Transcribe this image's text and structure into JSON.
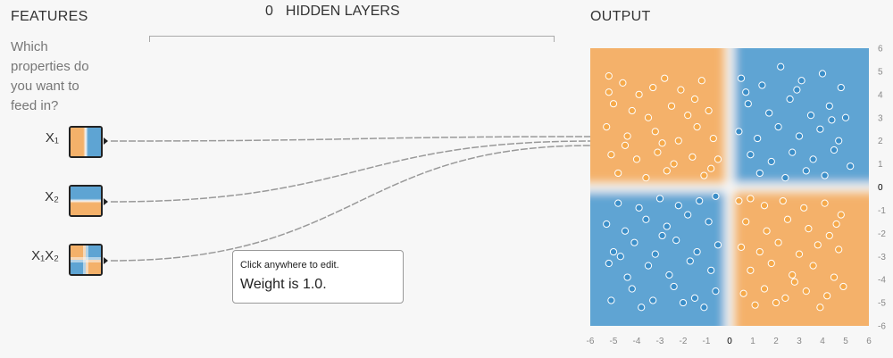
{
  "features": {
    "title": "FEATURES",
    "question": "Which properties do you want to feed in?",
    "items": [
      {
        "label": "X₁",
        "kind": "x1"
      },
      {
        "label": "X₂",
        "kind": "x2"
      },
      {
        "label": "X₁X₂",
        "kind": "x1x2"
      }
    ]
  },
  "hidden_layers": {
    "count": "0",
    "label": "HIDDEN LAYERS"
  },
  "output": {
    "title": "OUTPUT"
  },
  "tooltip": {
    "hint": "Click anywhere to edit.",
    "weight_text": "Weight is 1.0."
  },
  "colors": {
    "orange": "#f5a94a",
    "blue": "#3b8ec8",
    "bg_orange": "#f4b16a",
    "bg_blue": "#5ea4d3"
  },
  "chart_data": {
    "type": "scatter",
    "title": "",
    "xlabel": "",
    "ylabel": "",
    "xlim": [
      -6,
      6
    ],
    "ylim": [
      -6,
      6
    ],
    "x_ticks": [
      -6,
      -5,
      -4,
      -3,
      -2,
      -1,
      0,
      1,
      2,
      3,
      4,
      5,
      6
    ],
    "y_ticks": [
      6,
      5,
      4,
      3,
      2,
      1,
      0,
      -1,
      -2,
      -3,
      -4,
      -5,
      -6
    ],
    "series": [
      {
        "color": "orange",
        "points": [
          [
            -5.2,
            4.8
          ],
          [
            -4.6,
            4.5
          ],
          [
            -3.9,
            4.0
          ],
          [
            -2.8,
            4.7
          ],
          [
            -2.1,
            4.2
          ],
          [
            -1.2,
            4.6
          ],
          [
            -5.0,
            3.6
          ],
          [
            -4.2,
            3.3
          ],
          [
            -3.5,
            3.0
          ],
          [
            -2.5,
            3.5
          ],
          [
            -1.8,
            3.1
          ],
          [
            -0.9,
            3.3
          ],
          [
            -5.3,
            2.6
          ],
          [
            -4.4,
            2.2
          ],
          [
            -3.2,
            2.4
          ],
          [
            -2.2,
            2.0
          ],
          [
            -1.4,
            2.6
          ],
          [
            -0.7,
            2.1
          ],
          [
            -5.1,
            1.4
          ],
          [
            -4.0,
            1.2
          ],
          [
            -3.1,
            1.5
          ],
          [
            -2.4,
            1.0
          ],
          [
            -1.6,
            1.3
          ],
          [
            -0.5,
            1.2
          ],
          [
            -4.8,
            0.6
          ],
          [
            -3.6,
            0.4
          ],
          [
            -2.7,
            0.7
          ],
          [
            -1.1,
            0.5
          ],
          [
            -5.2,
            4.1
          ],
          [
            -3.3,
            4.3
          ],
          [
            -1.5,
            3.8
          ],
          [
            -4.5,
            1.8
          ],
          [
            -2.9,
            1.9
          ],
          [
            -0.8,
            0.8
          ],
          [
            0.4,
            -0.6
          ],
          [
            0.9,
            -0.5
          ],
          [
            1.5,
            -0.8
          ],
          [
            2.3,
            -0.6
          ],
          [
            3.2,
            -0.9
          ],
          [
            4.1,
            -0.7
          ],
          [
            4.8,
            -1.2
          ],
          [
            0.7,
            -1.5
          ],
          [
            1.6,
            -1.9
          ],
          [
            2.5,
            -1.4
          ],
          [
            3.4,
            -1.8
          ],
          [
            4.3,
            -2.1
          ],
          [
            0.5,
            -2.6
          ],
          [
            1.3,
            -2.8
          ],
          [
            2.1,
            -2.4
          ],
          [
            3.0,
            -2.9
          ],
          [
            3.8,
            -2.5
          ],
          [
            4.7,
            -2.7
          ],
          [
            0.9,
            -3.6
          ],
          [
            1.8,
            -3.3
          ],
          [
            2.7,
            -3.8
          ],
          [
            3.6,
            -3.4
          ],
          [
            4.5,
            -3.9
          ],
          [
            0.6,
            -4.6
          ],
          [
            1.5,
            -4.4
          ],
          [
            2.4,
            -4.8
          ],
          [
            3.3,
            -4.5
          ],
          [
            4.2,
            -4.7
          ],
          [
            4.9,
            -4.3
          ],
          [
            1.1,
            -5.1
          ],
          [
            2.0,
            -5.0
          ],
          [
            3.9,
            -5.2
          ],
          [
            4.6,
            -1.6
          ],
          [
            2.8,
            -4.1
          ]
        ]
      },
      {
        "color": "blue",
        "points": [
          [
            0.5,
            4.7
          ],
          [
            1.4,
            4.4
          ],
          [
            2.2,
            5.2
          ],
          [
            3.1,
            4.6
          ],
          [
            4.0,
            4.9
          ],
          [
            4.8,
            4.3
          ],
          [
            0.8,
            3.6
          ],
          [
            1.7,
            3.2
          ],
          [
            2.6,
            3.8
          ],
          [
            3.5,
            3.1
          ],
          [
            4.3,
            3.5
          ],
          [
            5.0,
            3.0
          ],
          [
            0.4,
            2.4
          ],
          [
            1.2,
            2.1
          ],
          [
            2.1,
            2.6
          ],
          [
            3.0,
            2.2
          ],
          [
            3.9,
            2.5
          ],
          [
            4.7,
            2.0
          ],
          [
            0.9,
            1.4
          ],
          [
            1.8,
            1.1
          ],
          [
            2.7,
            1.5
          ],
          [
            3.6,
            1.2
          ],
          [
            4.5,
            1.6
          ],
          [
            5.2,
            0.9
          ],
          [
            1.3,
            0.6
          ],
          [
            2.4,
            0.4
          ],
          [
            3.3,
            0.7
          ],
          [
            4.1,
            0.5
          ],
          [
            0.7,
            4.1
          ],
          [
            2.9,
            4.2
          ],
          [
            4.4,
            2.9
          ],
          [
            -0.6,
            -0.4
          ],
          [
            -1.3,
            -0.6
          ],
          [
            -2.2,
            -0.8
          ],
          [
            -3.0,
            -0.5
          ],
          [
            -3.9,
            -0.9
          ],
          [
            -4.8,
            -0.7
          ],
          [
            -0.9,
            -1.5
          ],
          [
            -1.8,
            -1.2
          ],
          [
            -2.7,
            -1.7
          ],
          [
            -3.6,
            -1.4
          ],
          [
            -4.5,
            -1.9
          ],
          [
            -5.3,
            -1.6
          ],
          [
            -0.5,
            -2.5
          ],
          [
            -1.4,
            -2.8
          ],
          [
            -2.3,
            -2.3
          ],
          [
            -3.2,
            -2.9
          ],
          [
            -4.1,
            -2.4
          ],
          [
            -5.0,
            -2.8
          ],
          [
            -0.8,
            -3.6
          ],
          [
            -1.7,
            -3.2
          ],
          [
            -2.6,
            -3.8
          ],
          [
            -3.5,
            -3.4
          ],
          [
            -4.4,
            -3.9
          ],
          [
            -5.2,
            -3.3
          ],
          [
            -0.6,
            -4.5
          ],
          [
            -1.5,
            -4.8
          ],
          [
            -2.4,
            -4.3
          ],
          [
            -3.3,
            -4.9
          ],
          [
            -4.2,
            -4.4
          ],
          [
            -5.1,
            -4.9
          ],
          [
            -1.1,
            -5.2
          ],
          [
            -2.0,
            -5.0
          ],
          [
            -3.8,
            -5.2
          ],
          [
            -2.9,
            -2.1
          ],
          [
            -4.7,
            -3.0
          ]
        ]
      }
    ]
  }
}
